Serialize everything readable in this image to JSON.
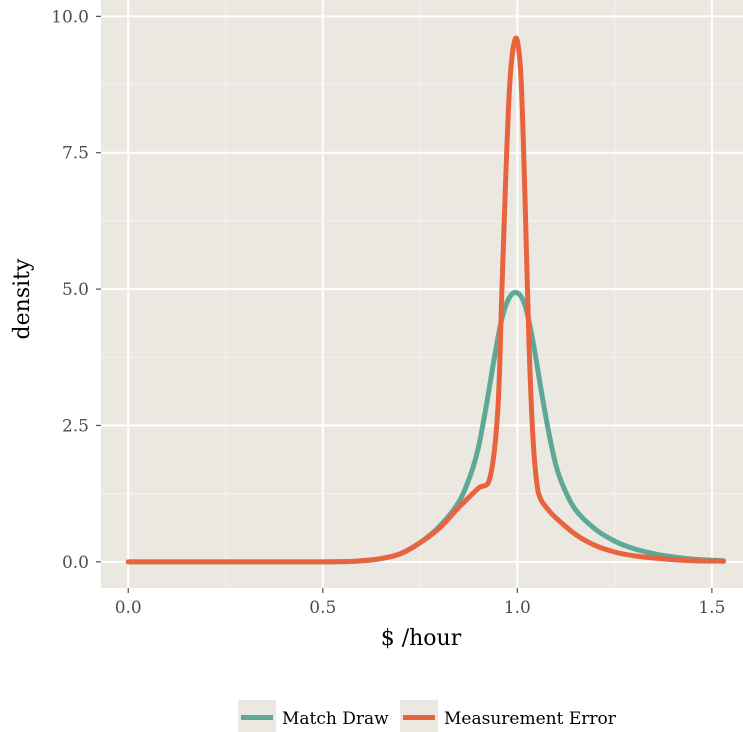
{
  "chart_data": {
    "type": "line",
    "title": "",
    "xlabel": "$ /hour",
    "ylabel": "density",
    "xlim": [
      -0.07,
      1.58
    ],
    "ylim": [
      -0.48,
      10.3
    ],
    "x_ticks": [
      0.0,
      0.5,
      1.0,
      1.5
    ],
    "x_tick_labels": [
      "0.0",
      "0.5",
      "1.0",
      "1.5"
    ],
    "y_ticks": [
      0.0,
      2.5,
      5.0,
      7.5,
      10.0
    ],
    "y_tick_labels": [
      "0.0",
      "2.5",
      "5.0",
      "7.5",
      "10.0"
    ],
    "grid": true,
    "legend_position": "bottom",
    "series": [
      {
        "name": "Match Draw",
        "color": "#5fa898",
        "x": [
          0.0,
          0.5,
          0.6,
          0.65,
          0.7,
          0.75,
          0.8,
          0.85,
          0.88,
          0.9,
          0.92,
          0.94,
          0.96,
          0.98,
          1.0,
          1.02,
          1.04,
          1.06,
          1.08,
          1.1,
          1.12,
          1.15,
          1.2,
          1.25,
          1.3,
          1.35,
          1.4,
          1.45,
          1.53
        ],
        "y": [
          0.0,
          0.0,
          0.02,
          0.06,
          0.15,
          0.35,
          0.65,
          1.1,
          1.6,
          2.1,
          2.85,
          3.7,
          4.45,
          4.85,
          4.93,
          4.7,
          4.05,
          3.2,
          2.4,
          1.75,
          1.35,
          0.95,
          0.6,
          0.38,
          0.24,
          0.15,
          0.09,
          0.05,
          0.02
        ]
      },
      {
        "name": "Measurement Error",
        "color": "#e8643f",
        "x": [
          0.0,
          0.5,
          0.6,
          0.65,
          0.7,
          0.75,
          0.8,
          0.85,
          0.9,
          0.93,
          0.95,
          0.96,
          0.97,
          0.98,
          0.99,
          1.0,
          1.01,
          1.02,
          1.03,
          1.04,
          1.05,
          1.06,
          1.08,
          1.1,
          1.15,
          1.2,
          1.25,
          1.3,
          1.35,
          1.4,
          1.45,
          1.53
        ],
        "y": [
          0.0,
          0.0,
          0.02,
          0.06,
          0.15,
          0.35,
          0.62,
          1.0,
          1.35,
          1.55,
          2.8,
          4.9,
          7.0,
          8.7,
          9.45,
          9.55,
          8.8,
          6.6,
          4.0,
          2.3,
          1.45,
          1.15,
          0.95,
          0.8,
          0.5,
          0.3,
          0.18,
          0.11,
          0.07,
          0.04,
          0.02,
          0.01
        ]
      }
    ]
  }
}
